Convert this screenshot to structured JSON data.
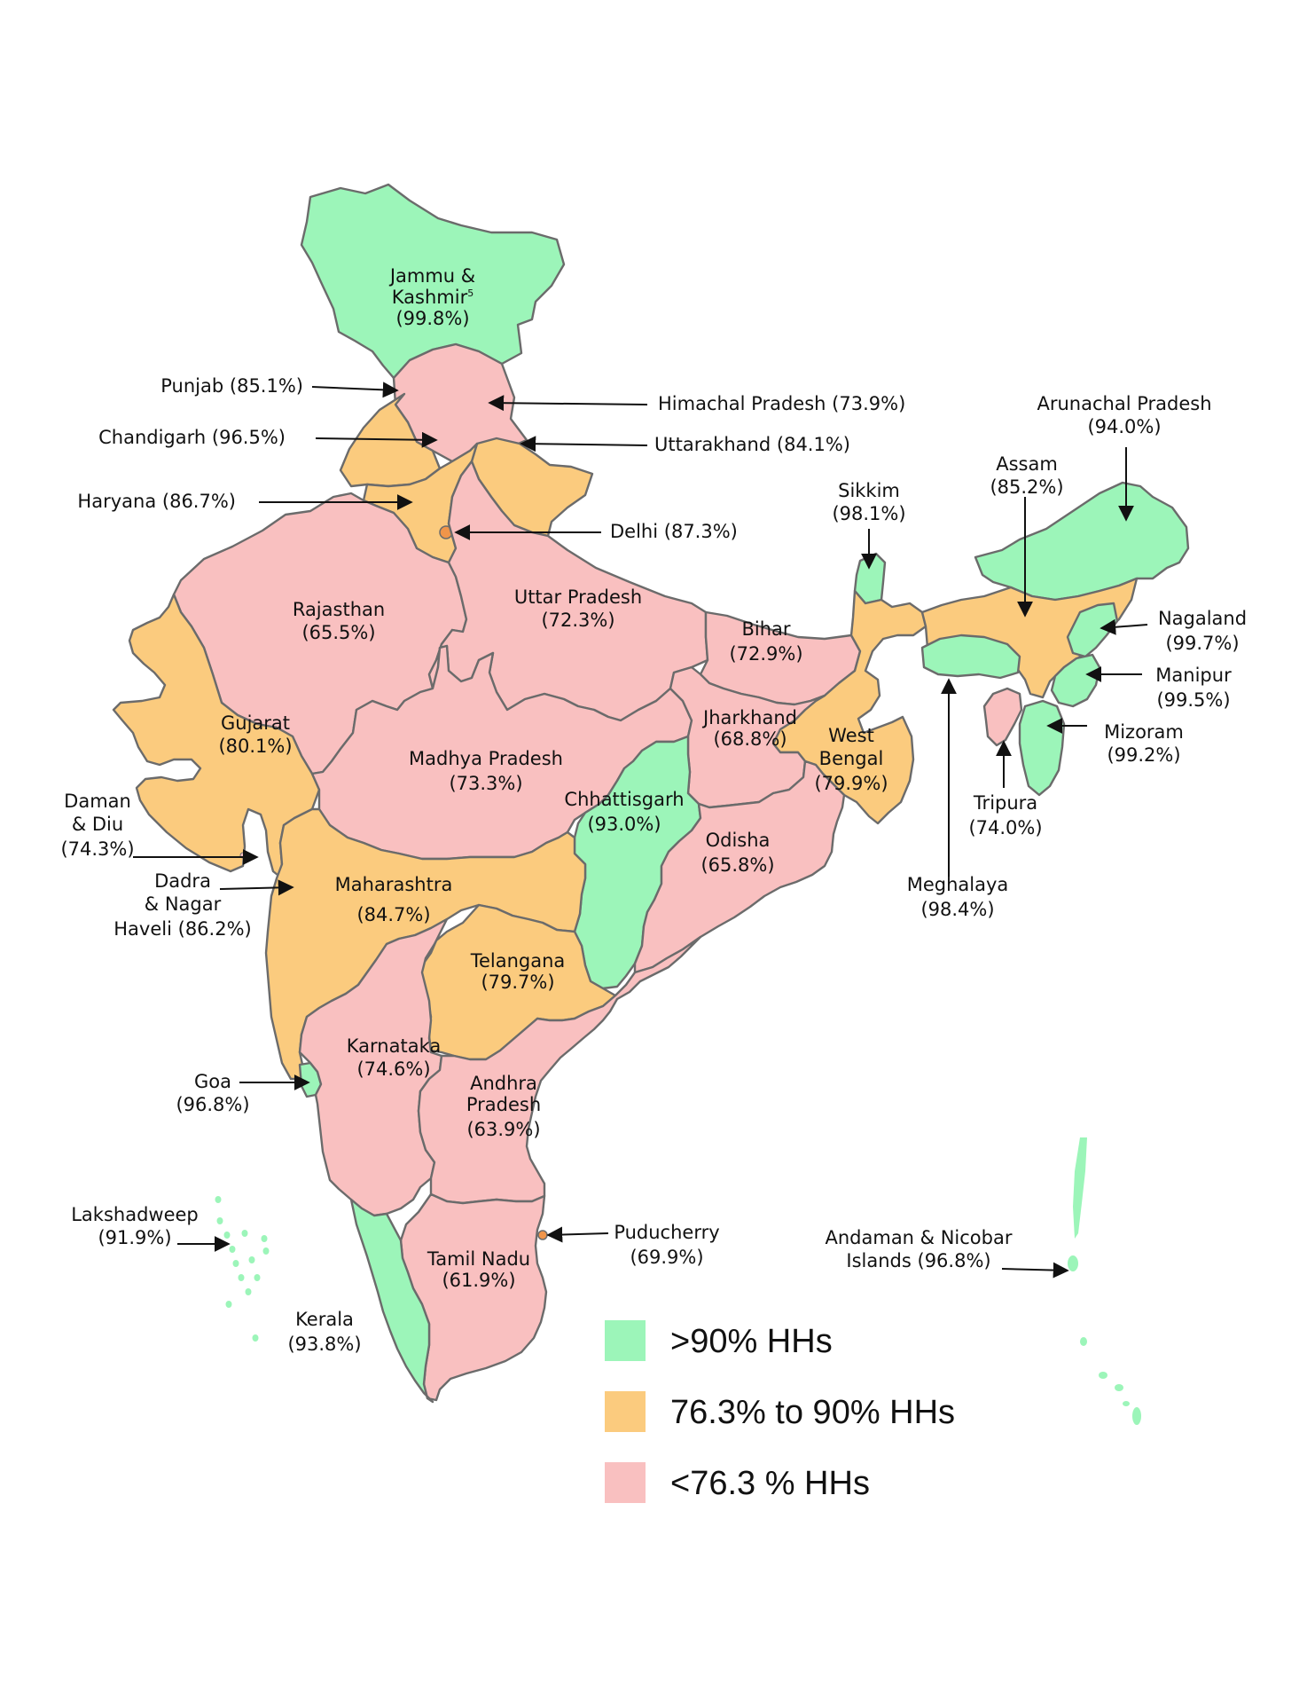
{
  "colors": {
    "high": "#9cf5b9",
    "mid": "#fbcb7e",
    "low": "#f9c0c0",
    "border": "#6b6b6b",
    "dot": "#f0954a"
  },
  "legend": [
    {
      "key": "high",
      "label": ">90% HHs"
    },
    {
      "key": "mid",
      "label": "76.3% to 90% HHs"
    },
    {
      "key": "low",
      "label": "<76.3 % HHs"
    }
  ],
  "regions": {
    "jk": {
      "name": "Jammu &",
      "name2": "Kashmir",
      "sup": "5",
      "value": "(99.8%)",
      "category": "high"
    },
    "punjab": {
      "name": "Punjab",
      "value": "(85.1%)",
      "category": "mid"
    },
    "himachal": {
      "name": "Himachal Pradesh",
      "value": "(73.9%)",
      "category": "low"
    },
    "chandigarh": {
      "name": "Chandigarh",
      "value": "(96.5%)",
      "category": "high"
    },
    "uttarakhand": {
      "name": "Uttarakhand",
      "value": "(84.1%)",
      "category": "mid"
    },
    "haryana": {
      "name": "Haryana",
      "value": "(86.7%)",
      "category": "mid"
    },
    "delhi": {
      "name": "Delhi",
      "value": "(87.3%)",
      "category": "mid"
    },
    "rajasthan": {
      "name": "Rajasthan",
      "value": "(65.5%)",
      "category": "low"
    },
    "up": {
      "name": "Uttar Pradesh",
      "value": "(72.3%)",
      "category": "low"
    },
    "bihar": {
      "name": "Bihar",
      "value": "(72.9%)",
      "category": "low"
    },
    "sikkim": {
      "name": "Sikkim",
      "value": "(98.1%)",
      "category": "high"
    },
    "arunachal": {
      "name": "Arunachal Pradesh",
      "value": "(94.0%)",
      "category": "high"
    },
    "assam": {
      "name": "Assam",
      "value": "(85.2%)",
      "category": "mid"
    },
    "nagaland": {
      "name": "Nagaland",
      "value": "(99.7%)",
      "category": "high"
    },
    "manipur": {
      "name": "Manipur",
      "value": "(99.5%)",
      "category": "high"
    },
    "mizoram": {
      "name": "Mizoram",
      "value": "(99.2%)",
      "category": "high"
    },
    "tripura": {
      "name": "Tripura",
      "value": "(74.0%)",
      "category": "low"
    },
    "meghalaya": {
      "name": "Meghalaya",
      "value": "(98.4%)",
      "category": "high"
    },
    "gujarat": {
      "name": "Gujarat",
      "value": "(80.1%)",
      "category": "mid"
    },
    "mp": {
      "name": "Madhya Pradesh",
      "value": "(73.3%)",
      "category": "low"
    },
    "jharkhand": {
      "name": "Jharkhand",
      "value": "(68.8%)",
      "category": "low"
    },
    "wb": {
      "name": "West",
      "name2": "Bengal",
      "value": "(79.9%)",
      "category": "mid"
    },
    "chhattisgarh": {
      "name": "Chhattisgarh",
      "value": "(93.0%)",
      "category": "high"
    },
    "odisha": {
      "name": "Odisha",
      "value": "(65.8%)",
      "category": "low"
    },
    "daman": {
      "name": "Daman",
      "name2": "& Diu",
      "value": "(74.3%)",
      "category": "low"
    },
    "dadra": {
      "name": "Dadra",
      "name2": "& Nagar",
      "name3": "Haveli",
      "value": "(86.2%)",
      "category": "mid"
    },
    "maharashtra": {
      "name": "Maharashtra",
      "value": "(84.7%)",
      "category": "mid"
    },
    "telangana": {
      "name": "Telangana",
      "value": "(79.7%)",
      "category": "mid"
    },
    "goa": {
      "name": "Goa",
      "value": "(96.8%)",
      "category": "high"
    },
    "karnataka": {
      "name": "Karnataka",
      "value": "(74.6%)",
      "category": "low"
    },
    "ap": {
      "name": "Andhra",
      "name2": "Pradesh",
      "value": "(63.9%)",
      "category": "low"
    },
    "lakshadweep": {
      "name": "Lakshadweep",
      "value": "(91.9%)",
      "category": "high"
    },
    "puducherry": {
      "name": "Puducherry",
      "value": "(69.9%)",
      "category": "low"
    },
    "tn": {
      "name": "Tamil Nadu",
      "value": "(61.9%)",
      "category": "low"
    },
    "kerala": {
      "name": "Kerala",
      "value": "(93.8%)",
      "category": "high"
    },
    "andaman": {
      "name": "Andaman & Nicobar",
      "name2": "Islands",
      "value": "(96.8%)",
      "category": "high"
    }
  }
}
